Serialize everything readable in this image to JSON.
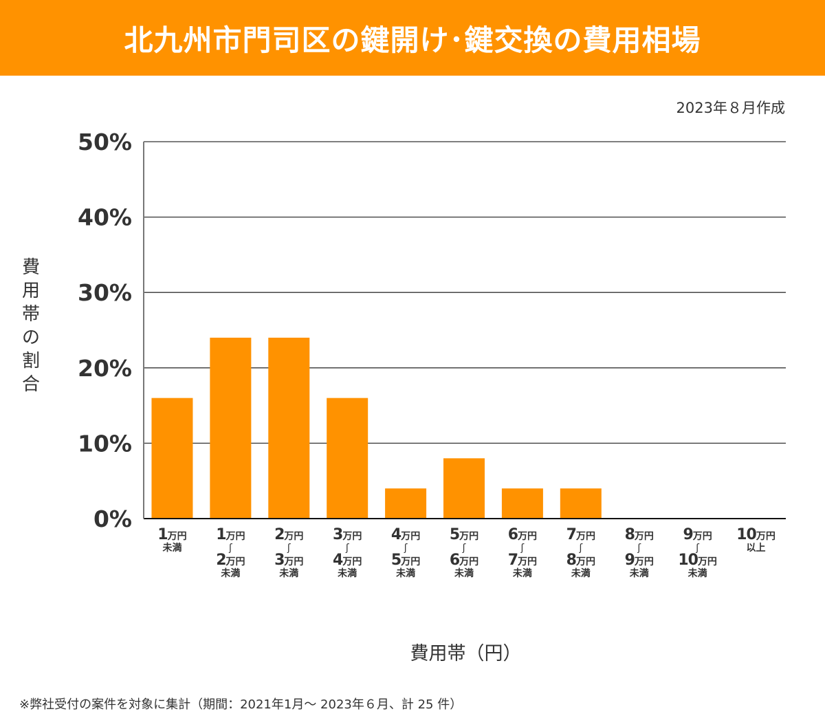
{
  "header": {
    "title": "北九州市門司区の鍵開け･鍵交換の費用相場"
  },
  "created_label": "2023年８月作成",
  "footnote": "※弊社受付の案件を対象に集計（期間：2021年1月～ 2023年６月、計 25 件）",
  "colors": {
    "bar": "#ff9200",
    "header": "#ff9200",
    "grid": "#333333"
  },
  "chart_data": {
    "type": "bar",
    "title": "北九州市門司区の鍵開け･鍵交換の費用相場",
    "xlabel": "費用帯（円）",
    "ylabel": "費用帯の割合",
    "ylabel_chars": [
      "費",
      "用",
      "帯",
      "の",
      "割",
      "合"
    ],
    "ylim": [
      0,
      50
    ],
    "yticks": [
      "0%",
      "10%",
      "20%",
      "30%",
      "40%",
      "50%"
    ],
    "ytick_values": [
      0,
      10,
      20,
      30,
      40,
      50
    ],
    "grid": true,
    "categories": [
      {
        "from": "1",
        "to": null,
        "unit": "万円",
        "suffix": "未満"
      },
      {
        "from": "1",
        "to": "2",
        "unit": "万円",
        "tilde": "∫",
        "suffix": "未満"
      },
      {
        "from": "2",
        "to": "3",
        "unit": "万円",
        "tilde": "∫",
        "suffix": "未満"
      },
      {
        "from": "3",
        "to": "4",
        "unit": "万円",
        "tilde": "∫",
        "suffix": "未満"
      },
      {
        "from": "4",
        "to": "5",
        "unit": "万円",
        "tilde": "∫",
        "suffix": "未満"
      },
      {
        "from": "5",
        "to": "6",
        "unit": "万円",
        "tilde": "∫",
        "suffix": "未満"
      },
      {
        "from": "6",
        "to": "7",
        "unit": "万円",
        "tilde": "∫",
        "suffix": "未満"
      },
      {
        "from": "7",
        "to": "8",
        "unit": "万円",
        "tilde": "∫",
        "suffix": "未満"
      },
      {
        "from": "8",
        "to": "9",
        "unit": "万円",
        "tilde": "∫",
        "suffix": "未満"
      },
      {
        "from": "9",
        "to": "10",
        "unit": "万円",
        "tilde": "∫",
        "suffix": "未満"
      },
      {
        "from": "10",
        "to": null,
        "unit": "万円",
        "suffix": "以上"
      }
    ],
    "values": [
      16,
      24,
      24,
      16,
      4,
      8,
      4,
      4,
      0,
      0,
      0
    ]
  }
}
